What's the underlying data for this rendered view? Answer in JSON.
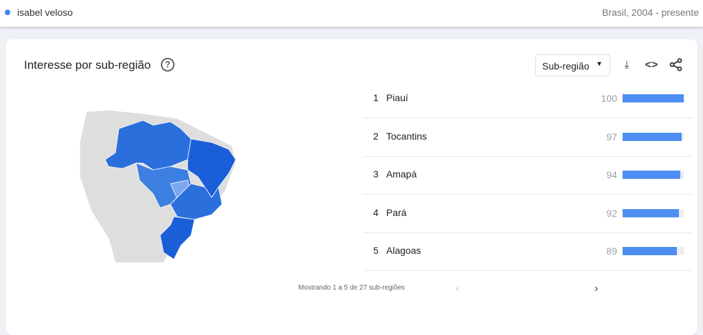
{
  "header": {
    "term": "isabel veloso",
    "term_color": "#4285f4",
    "scope": "Brasil, 2004 - presente"
  },
  "card": {
    "title": "Interesse por sub-região",
    "help_icon": "help-icon",
    "dropdown": "Sub-região",
    "icons": [
      "download-icon",
      "embed-icon",
      "share-icon"
    ]
  },
  "rows": [
    {
      "rank": "1",
      "name": "Piauí",
      "value": "100",
      "pct": 100
    },
    {
      "rank": "2",
      "name": "Tocantins",
      "value": "97",
      "pct": 97
    },
    {
      "rank": "3",
      "name": "Amapá",
      "value": "94",
      "pct": 94
    },
    {
      "rank": "4",
      "name": "Pará",
      "value": "92",
      "pct": 92
    },
    {
      "rank": "5",
      "name": "Alagoas",
      "value": "89",
      "pct": 89
    }
  ],
  "pagination": {
    "text": "Mostrando 1 a 5 de 27 sub-regiões"
  },
  "colors": {
    "bar": "#4e8ef2",
    "map_high": "#1a5fd8",
    "map_mid": "#3d7fe0",
    "map_low": "#7aa7ee",
    "land": "#dedede"
  }
}
